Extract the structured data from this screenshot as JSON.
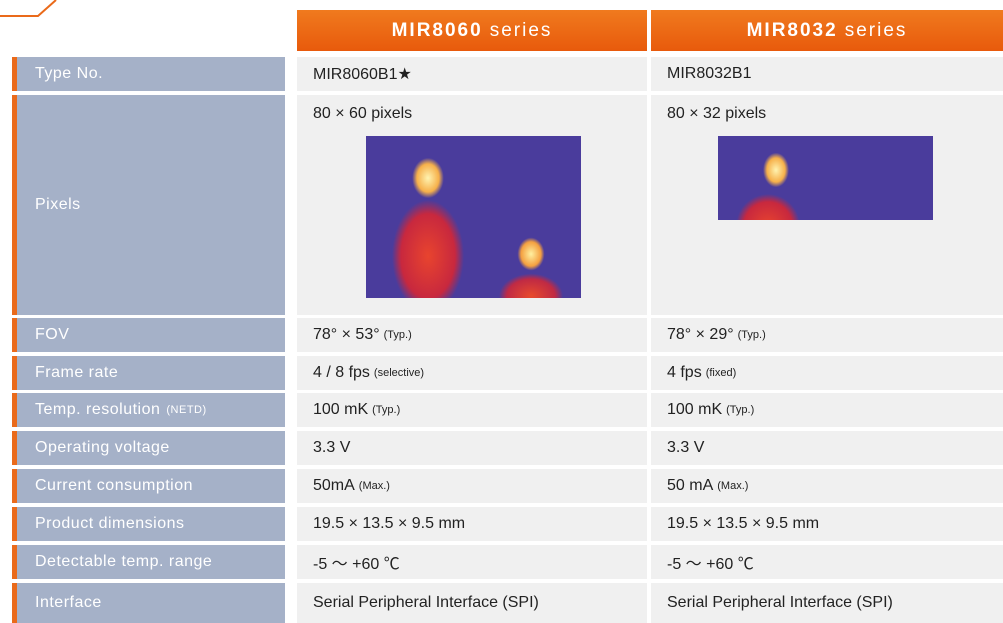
{
  "header": {
    "columns": [
      {
        "model": "MIR8060",
        "suffix": "series"
      },
      {
        "model": "MIR8032",
        "suffix": "series"
      }
    ]
  },
  "rows": [
    {
      "label": "Type No.",
      "cells": [
        {
          "text": "MIR8060B1★"
        },
        {
          "text": "MIR8032B1"
        }
      ]
    },
    {
      "label": "Pixels",
      "cells": [
        {
          "text": "80 × 60 pixels"
        },
        {
          "text": "80 × 32 pixels"
        }
      ]
    },
    {
      "label": "FOV",
      "cells": [
        {
          "text": "78° × 53°",
          "note": "(Typ.)"
        },
        {
          "text": "78° × 29°",
          "note": "(Typ.)"
        }
      ]
    },
    {
      "label": "Frame rate",
      "cells": [
        {
          "text": "4 / 8 fps",
          "note": "(selective)"
        },
        {
          "text": "4 fps",
          "note": "(fixed)"
        }
      ]
    },
    {
      "label": "Temp. resolution",
      "label_note": "(NETD)",
      "cells": [
        {
          "text": "100 mK",
          "note": "(Typ.)"
        },
        {
          "text": "100 mK",
          "note": "(Typ.)"
        }
      ]
    },
    {
      "label": "Operating voltage",
      "cells": [
        {
          "text": "3.3 V"
        },
        {
          "text": "3.3 V"
        }
      ]
    },
    {
      "label": "Current consumption",
      "cells": [
        {
          "text": "50mA",
          "note": "(Max.)"
        },
        {
          "text": "50 mA",
          "note": "(Max.)"
        }
      ]
    },
    {
      "label": "Product dimensions",
      "cells": [
        {
          "text": "19.5 × 13.5 × 9.5 mm"
        },
        {
          "text": "19.5 × 13.5 × 9.5 mm"
        }
      ]
    },
    {
      "label": "Detectable temp. range",
      "cells": [
        {
          "text": "-5 ～ +60 ℃"
        },
        {
          "text": "-5 ～ +60 ℃"
        }
      ]
    },
    {
      "label": "Interface",
      "cells": [
        {
          "text": "Serial Peripheral Interface (SPI)"
        },
        {
          "text": "Serial Peripheral Interface (SPI)"
        }
      ]
    }
  ]
}
